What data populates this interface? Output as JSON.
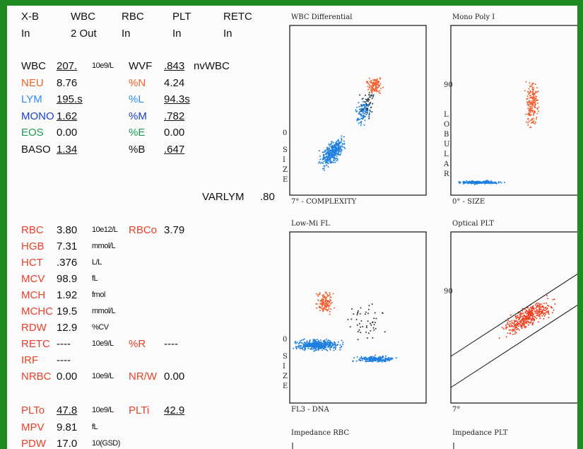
{
  "header": {
    "rows": [
      [
        "X-B",
        "WBC",
        "RBC",
        "PLT",
        "RETC"
      ],
      [
        "In",
        "2 Out",
        "In",
        "In",
        "In"
      ]
    ]
  },
  "wbc": [
    {
      "label": "WBC",
      "value": "207.",
      "unit": "10e9/L",
      "label2": "WVF",
      "value2": ".843",
      "unit2": "nvWBC",
      "color": "#111111",
      "underlined": true
    },
    {
      "label": "NEU",
      "value": "8.76",
      "label2": "%N",
      "value2": "4.24",
      "color": "#f0622a"
    },
    {
      "label": "LYM",
      "value": "195.s",
      "label2": "%L",
      "value2": "94.3s",
      "color": "#2a8ef0",
      "underlined": true
    },
    {
      "label": "MONO",
      "value": "1.62",
      "label2": "%M",
      "value2": ".782",
      "color": "#1a3fc8",
      "underlined": true
    },
    {
      "label": "EOS",
      "value": "0.00",
      "label2": "%E",
      "value2": "0.00",
      "color": "#1a9a50"
    },
    {
      "label": "BASO",
      "value": "1.34",
      "label2": "%B",
      "value2": ".647",
      "color": "#111111",
      "underlined": true
    }
  ],
  "varlym": {
    "label": "VARLYM",
    "value": ".80"
  },
  "rbc": [
    {
      "label": "RBC",
      "value": "3.80",
      "unit": "10e12/L",
      "label2": "RBCo",
      "value2": "3.79"
    },
    {
      "label": "HGB",
      "value": "7.31",
      "unit": "mmol/L"
    },
    {
      "label": "HCT",
      "value": ".376",
      "unit": "L/L"
    },
    {
      "label": "MCV",
      "value": "98.9",
      "unit": "fL"
    },
    {
      "label": "MCH",
      "value": "1.92",
      "unit": "fmol"
    },
    {
      "label": "MCHC",
      "value": "19.5",
      "unit": "mmol/L"
    },
    {
      "label": "RDW",
      "value": "12.9",
      "unit": "%CV"
    },
    {
      "label": "RETC",
      "value": "----",
      "unit": "10e9/L",
      "label2": "%R",
      "value2": "----"
    },
    {
      "label": "IRF",
      "value": "----"
    },
    {
      "label": "NRBC",
      "value": "0.00",
      "unit": "10e9/L",
      "label2": "NR/W",
      "value2": "0.00"
    }
  ],
  "plt": [
    {
      "label": "PLTo",
      "value": "47.8",
      "unit": "10e9/L",
      "label2": "PLTi",
      "value2": "42.9",
      "underlined": true
    },
    {
      "label": "MPV",
      "value": "9.81",
      "unit": "fL"
    },
    {
      "label": "PDW",
      "value": "17.0",
      "unit": "10(GSD)"
    }
  ],
  "plots": [
    {
      "title": "WBC Differential",
      "x_label": "7° - COMPLEXITY",
      "y_mark": "0",
      "y_label": "SIZE"
    },
    {
      "title": "Mono Poly I",
      "x_label": "0° - SIZE",
      "y_mark": "90",
      "y_label": "LOBULAR"
    },
    {
      "title": "Low-Mi FL",
      "x_label": "FL3 - DNA",
      "y_mark": "0",
      "y_label": "SIZE"
    },
    {
      "title": "Optical PLT",
      "x_label": "7°",
      "y_mark": "90"
    },
    {
      "title": "Impedance RBC"
    },
    {
      "title": "Impedance PLT"
    }
  ]
}
